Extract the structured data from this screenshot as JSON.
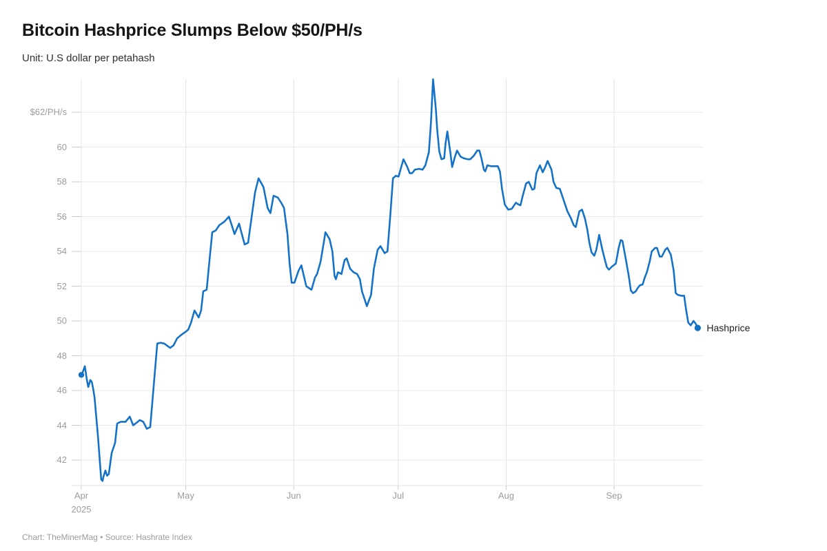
{
  "header": {
    "title": "Bitcoin Hashprice Slumps Below $50/PH/s",
    "subtitle": "Unit: U.S dollar per petahash"
  },
  "footer": {
    "credit": "Chart: TheMinerMag • Source: Hashrate Index"
  },
  "colors": {
    "line": "#1472C6",
    "grid": "#e9e9e9",
    "grid_vertical": "#e4e4e4",
    "tick": "#c9c9c9",
    "axis_text": "#9b9b9b",
    "title_text": "#151515",
    "series_label_text": "#1f1f1f"
  },
  "chart_data": {
    "type": "line",
    "title": "Bitcoin Hashprice Slumps Below $50/PH/s",
    "unit": "U.S dollar per petahash",
    "grid": true,
    "legend_position": "end-of-line-label",
    "x_axis": {
      "start_date": "2025-04-01",
      "note": "point x values are day offsets from start_date",
      "ticks": [
        {
          "day": 0,
          "label": "Apr",
          "sublabel": "2025"
        },
        {
          "day": 30,
          "label": "May"
        },
        {
          "day": 61,
          "label": "Jun"
        },
        {
          "day": 91,
          "label": "Jul"
        },
        {
          "day": 122,
          "label": "Aug"
        },
        {
          "day": 153,
          "label": "Sep"
        }
      ]
    },
    "y_axis": {
      "range": [
        40.5,
        63.9
      ],
      "ticks": [
        {
          "v": 42,
          "label": "42"
        },
        {
          "v": 44,
          "label": "44"
        },
        {
          "v": 46,
          "label": "46"
        },
        {
          "v": 48,
          "label": "48"
        },
        {
          "v": 50,
          "label": "50"
        },
        {
          "v": 52,
          "label": "52"
        },
        {
          "v": 54,
          "label": "54"
        },
        {
          "v": 56,
          "label": "56"
        },
        {
          "v": 58,
          "label": "58"
        },
        {
          "v": 60,
          "label": "60"
        },
        {
          "v": 62,
          "label": "$62/PH/s"
        }
      ]
    },
    "series": [
      {
        "name": "Hashprice",
        "end_label": "Hashprice",
        "start_marker": true,
        "end_marker": true,
        "points": [
          [
            0,
            46.9
          ],
          [
            0.5,
            47.1
          ],
          [
            1,
            47.4
          ],
          [
            1.6,
            46.6
          ],
          [
            2,
            46.2
          ],
          [
            2.6,
            46.6
          ],
          [
            3,
            46.5
          ],
          [
            3.4,
            46.1
          ],
          [
            3.8,
            45.6
          ],
          [
            4.8,
            43.3
          ],
          [
            5.4,
            41.7
          ],
          [
            5.7,
            40.9
          ],
          [
            6.1,
            40.8
          ],
          [
            6.3,
            41.0
          ],
          [
            6.9,
            41.4
          ],
          [
            7.4,
            41.1
          ],
          [
            7.9,
            41.2
          ],
          [
            8.7,
            42.4
          ],
          [
            9.7,
            43.0
          ],
          [
            10.3,
            44.1
          ],
          [
            11.3,
            44.2
          ],
          [
            12.7,
            44.2
          ],
          [
            13.9,
            44.5
          ],
          [
            14.9,
            44.0
          ],
          [
            16.2,
            44.2
          ],
          [
            16.8,
            44.3
          ],
          [
            17.8,
            44.2
          ],
          [
            18.8,
            43.8
          ],
          [
            19.8,
            43.9
          ],
          [
            20.8,
            46.3
          ],
          [
            21.8,
            48.7
          ],
          [
            22.8,
            48.75
          ],
          [
            23.8,
            48.7
          ],
          [
            25.5,
            48.45
          ],
          [
            26.5,
            48.6
          ],
          [
            27.5,
            49.0
          ],
          [
            28.7,
            49.2
          ],
          [
            29.4,
            49.3
          ],
          [
            30.1,
            49.4
          ],
          [
            30.7,
            49.5
          ],
          [
            31.5,
            49.9
          ],
          [
            32.5,
            50.6
          ],
          [
            33.7,
            50.2
          ],
          [
            34.4,
            50.6
          ],
          [
            35,
            51.7
          ],
          [
            36,
            51.8
          ],
          [
            36.8,
            53.5
          ],
          [
            37.6,
            55.1
          ],
          [
            38.6,
            55.2
          ],
          [
            39.6,
            55.5
          ],
          [
            41,
            55.7
          ],
          [
            42.4,
            56.0
          ],
          [
            43.2,
            55.5
          ],
          [
            44,
            55.0
          ],
          [
            45.3,
            55.6
          ],
          [
            46.1,
            55.0
          ],
          [
            46.9,
            54.4
          ],
          [
            47.9,
            54.5
          ],
          [
            48.5,
            55.4
          ],
          [
            49.9,
            57.4
          ],
          [
            50.9,
            58.2
          ],
          [
            52.3,
            57.7
          ],
          [
            53.5,
            56.5
          ],
          [
            54.3,
            56.2
          ],
          [
            55.2,
            57.2
          ],
          [
            56.4,
            57.1
          ],
          [
            57.4,
            56.8
          ],
          [
            58.2,
            56.5
          ],
          [
            59.2,
            55.0
          ],
          [
            59.8,
            53.3
          ],
          [
            60.4,
            52.2
          ],
          [
            61.2,
            52.2
          ],
          [
            62.4,
            52.9
          ],
          [
            63.2,
            53.2
          ],
          [
            64.6,
            52.0
          ],
          [
            65.3,
            51.9
          ],
          [
            66.1,
            51.8
          ],
          [
            67.1,
            52.5
          ],
          [
            67.7,
            52.7
          ],
          [
            68.7,
            53.4
          ],
          [
            69.7,
            54.6
          ],
          [
            70.1,
            55.1
          ],
          [
            71.3,
            54.7
          ],
          [
            72.1,
            54.0
          ],
          [
            72.7,
            52.6
          ],
          [
            73.1,
            52.4
          ],
          [
            73.7,
            52.8
          ],
          [
            74.7,
            52.7
          ],
          [
            75.6,
            53.5
          ],
          [
            76.2,
            53.6
          ],
          [
            77.2,
            53.0
          ],
          [
            78.2,
            52.8
          ],
          [
            79.2,
            52.7
          ],
          [
            80,
            52.4
          ],
          [
            80.6,
            51.7
          ],
          [
            82,
            50.85
          ],
          [
            83.2,
            51.5
          ],
          [
            84,
            53.0
          ],
          [
            85.1,
            54.1
          ],
          [
            85.9,
            54.3
          ],
          [
            86.5,
            54.1
          ],
          [
            87.1,
            53.9
          ],
          [
            87.9,
            54.0
          ],
          [
            88.7,
            56.0
          ],
          [
            89.5,
            58.2
          ],
          [
            90.3,
            58.35
          ],
          [
            91.1,
            58.3
          ],
          [
            92.5,
            59.3
          ],
          [
            93.5,
            58.9
          ],
          [
            94.3,
            58.5
          ],
          [
            95,
            58.5
          ],
          [
            95.8,
            58.7
          ],
          [
            97,
            58.75
          ],
          [
            98,
            58.7
          ],
          [
            98.8,
            58.95
          ],
          [
            99.8,
            59.7
          ],
          [
            100.4,
            61.4
          ],
          [
            101,
            63.9
          ],
          [
            101.8,
            62.2
          ],
          [
            102.2,
            61.0
          ],
          [
            102.8,
            59.75
          ],
          [
            103.4,
            59.3
          ],
          [
            104.2,
            59.35
          ],
          [
            104.6,
            60.2
          ],
          [
            105.1,
            60.9
          ],
          [
            105.9,
            59.8
          ],
          [
            106.5,
            58.85
          ],
          [
            107.3,
            59.45
          ],
          [
            107.9,
            59.8
          ],
          [
            108.9,
            59.45
          ],
          [
            109.9,
            59.35
          ],
          [
            110.9,
            59.3
          ],
          [
            111.7,
            59.3
          ],
          [
            112.7,
            59.5
          ],
          [
            113.7,
            59.8
          ],
          [
            114.3,
            59.8
          ],
          [
            114.9,
            59.35
          ],
          [
            115.6,
            58.7
          ],
          [
            116,
            58.6
          ],
          [
            116.6,
            58.95
          ],
          [
            117.6,
            58.9
          ],
          [
            118.8,
            58.9
          ],
          [
            119.6,
            58.9
          ],
          [
            120.2,
            58.6
          ],
          [
            120.8,
            57.6
          ],
          [
            121.6,
            56.7
          ],
          [
            122.6,
            56.4
          ],
          [
            123.6,
            56.45
          ],
          [
            124.8,
            56.8
          ],
          [
            125.5,
            56.7
          ],
          [
            126.1,
            56.65
          ],
          [
            126.7,
            57.15
          ],
          [
            127.7,
            57.9
          ],
          [
            128.5,
            58.0
          ],
          [
            129.5,
            57.55
          ],
          [
            130.1,
            57.6
          ],
          [
            130.7,
            58.5
          ],
          [
            131.7,
            58.95
          ],
          [
            132.5,
            58.55
          ],
          [
            133.1,
            58.8
          ],
          [
            133.9,
            59.2
          ],
          [
            135,
            58.7
          ],
          [
            135.6,
            58.0
          ],
          [
            136.4,
            57.65
          ],
          [
            137.4,
            57.6
          ],
          [
            138.6,
            56.9
          ],
          [
            139.6,
            56.3
          ],
          [
            140.6,
            55.9
          ],
          [
            141.4,
            55.5
          ],
          [
            142,
            55.4
          ],
          [
            143,
            56.3
          ],
          [
            143.8,
            56.4
          ],
          [
            144.6,
            55.9
          ],
          [
            145.3,
            55.25
          ],
          [
            145.9,
            54.5
          ],
          [
            146.5,
            53.95
          ],
          [
            147.3,
            53.75
          ],
          [
            147.9,
            54.1
          ],
          [
            148.7,
            54.95
          ],
          [
            149.5,
            54.2
          ],
          [
            150.3,
            53.55
          ],
          [
            150.9,
            53.1
          ],
          [
            151.5,
            52.95
          ],
          [
            152.5,
            53.15
          ],
          [
            153.5,
            53.3
          ],
          [
            154.3,
            54.2
          ],
          [
            154.9,
            54.65
          ],
          [
            155.4,
            54.6
          ],
          [
            156.4,
            53.5
          ],
          [
            157.2,
            52.6
          ],
          [
            157.8,
            51.75
          ],
          [
            158.4,
            51.6
          ],
          [
            159.2,
            51.7
          ],
          [
            159.8,
            51.9
          ],
          [
            160.4,
            52.05
          ],
          [
            161.2,
            52.1
          ],
          [
            161.8,
            52.5
          ],
          [
            162.4,
            52.8
          ],
          [
            163.2,
            53.4
          ],
          [
            163.8,
            54.0
          ],
          [
            164.8,
            54.2
          ],
          [
            165.3,
            54.2
          ],
          [
            166.1,
            53.7
          ],
          [
            166.7,
            53.7
          ],
          [
            167.7,
            54.1
          ],
          [
            168.3,
            54.2
          ],
          [
            169.3,
            53.8
          ],
          [
            170.1,
            52.9
          ],
          [
            170.7,
            51.6
          ],
          [
            171.3,
            51.5
          ],
          [
            172.3,
            51.45
          ],
          [
            173.1,
            51.45
          ],
          [
            173.7,
            50.6
          ],
          [
            174.3,
            49.9
          ],
          [
            175,
            49.75
          ],
          [
            175.8,
            50.0
          ],
          [
            176.4,
            49.85
          ],
          [
            177,
            49.6
          ]
        ]
      }
    ]
  }
}
